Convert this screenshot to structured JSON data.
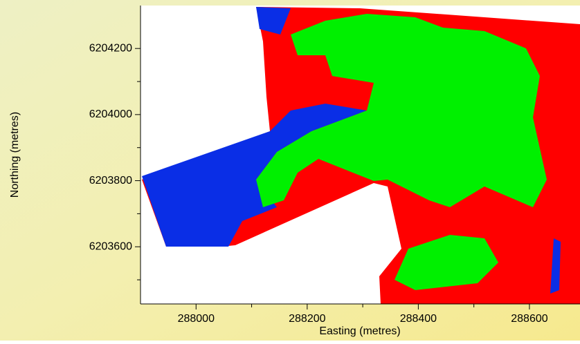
{
  "chart_data": {
    "type": "raster-map",
    "xlabel": "Easting (metres)",
    "ylabel": "Northing (metres)",
    "xlim": [
      287900,
      288691
    ],
    "ylim": [
      6203427,
      6204330
    ],
    "xticks": [
      288000,
      288200,
      288400,
      288600
    ],
    "yticks": [
      6203600,
      6203800,
      6204000,
      6204200
    ],
    "xminorticks": [
      288100,
      288300,
      288500
    ],
    "yminorticks": [
      6203500,
      6203700,
      6203900,
      6204100
    ]
  }
}
